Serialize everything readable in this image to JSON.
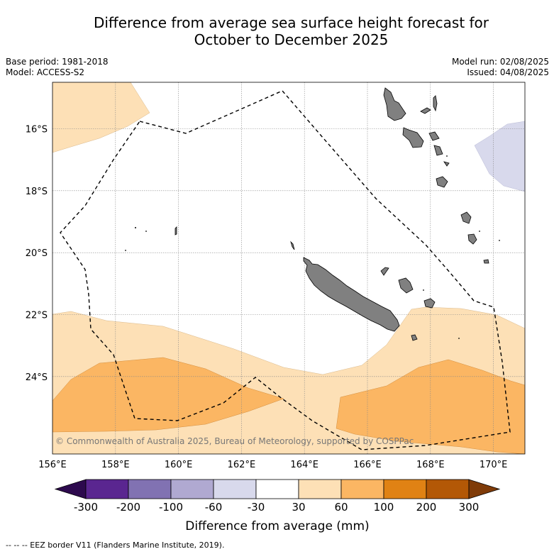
{
  "title_line1": "Difference from average sea surface height forecast for",
  "title_line2": "October to December 2025",
  "info": {
    "base_period": "Base period: 1981-2018",
    "model": "Model: ACCESS-S2",
    "model_run": "Model run: 02/08/2025",
    "issued": "Issued: 04/08/2025"
  },
  "copyright": "© Commonwealth of Australia 2025, Bureau of Meteorology, supported by COSPPac",
  "map": {
    "lon_range": [
      156,
      171
    ],
    "lat_range": [
      -14.5,
      -26.5
    ],
    "lon_ticks": [
      "156°E",
      "158°E",
      "160°E",
      "162°E",
      "164°E",
      "166°E",
      "168°E",
      "170°E"
    ],
    "lat_ticks": [
      "16°S",
      "18°S",
      "20°S",
      "22°S",
      "24°S"
    ],
    "grid": "dotted"
  },
  "colorbar": {
    "label": "Difference from average (mm)",
    "unit": "mm",
    "ticks": [
      "-300",
      "-200",
      "-100",
      "-60",
      "-30",
      "30",
      "60",
      "100",
      "200",
      "300"
    ],
    "colors": [
      "#2d0a4e",
      "#5a2690",
      "#8172b2",
      "#b0a9d1",
      "#d8d9ec",
      "#ffffff",
      "#fde0b6",
      "#fbb663",
      "#e08214",
      "#b35806",
      "#7f3b08"
    ]
  },
  "legend_footer": "--  --  -- EEZ border V11 (Flanders Marine Institute, 2019)."
}
